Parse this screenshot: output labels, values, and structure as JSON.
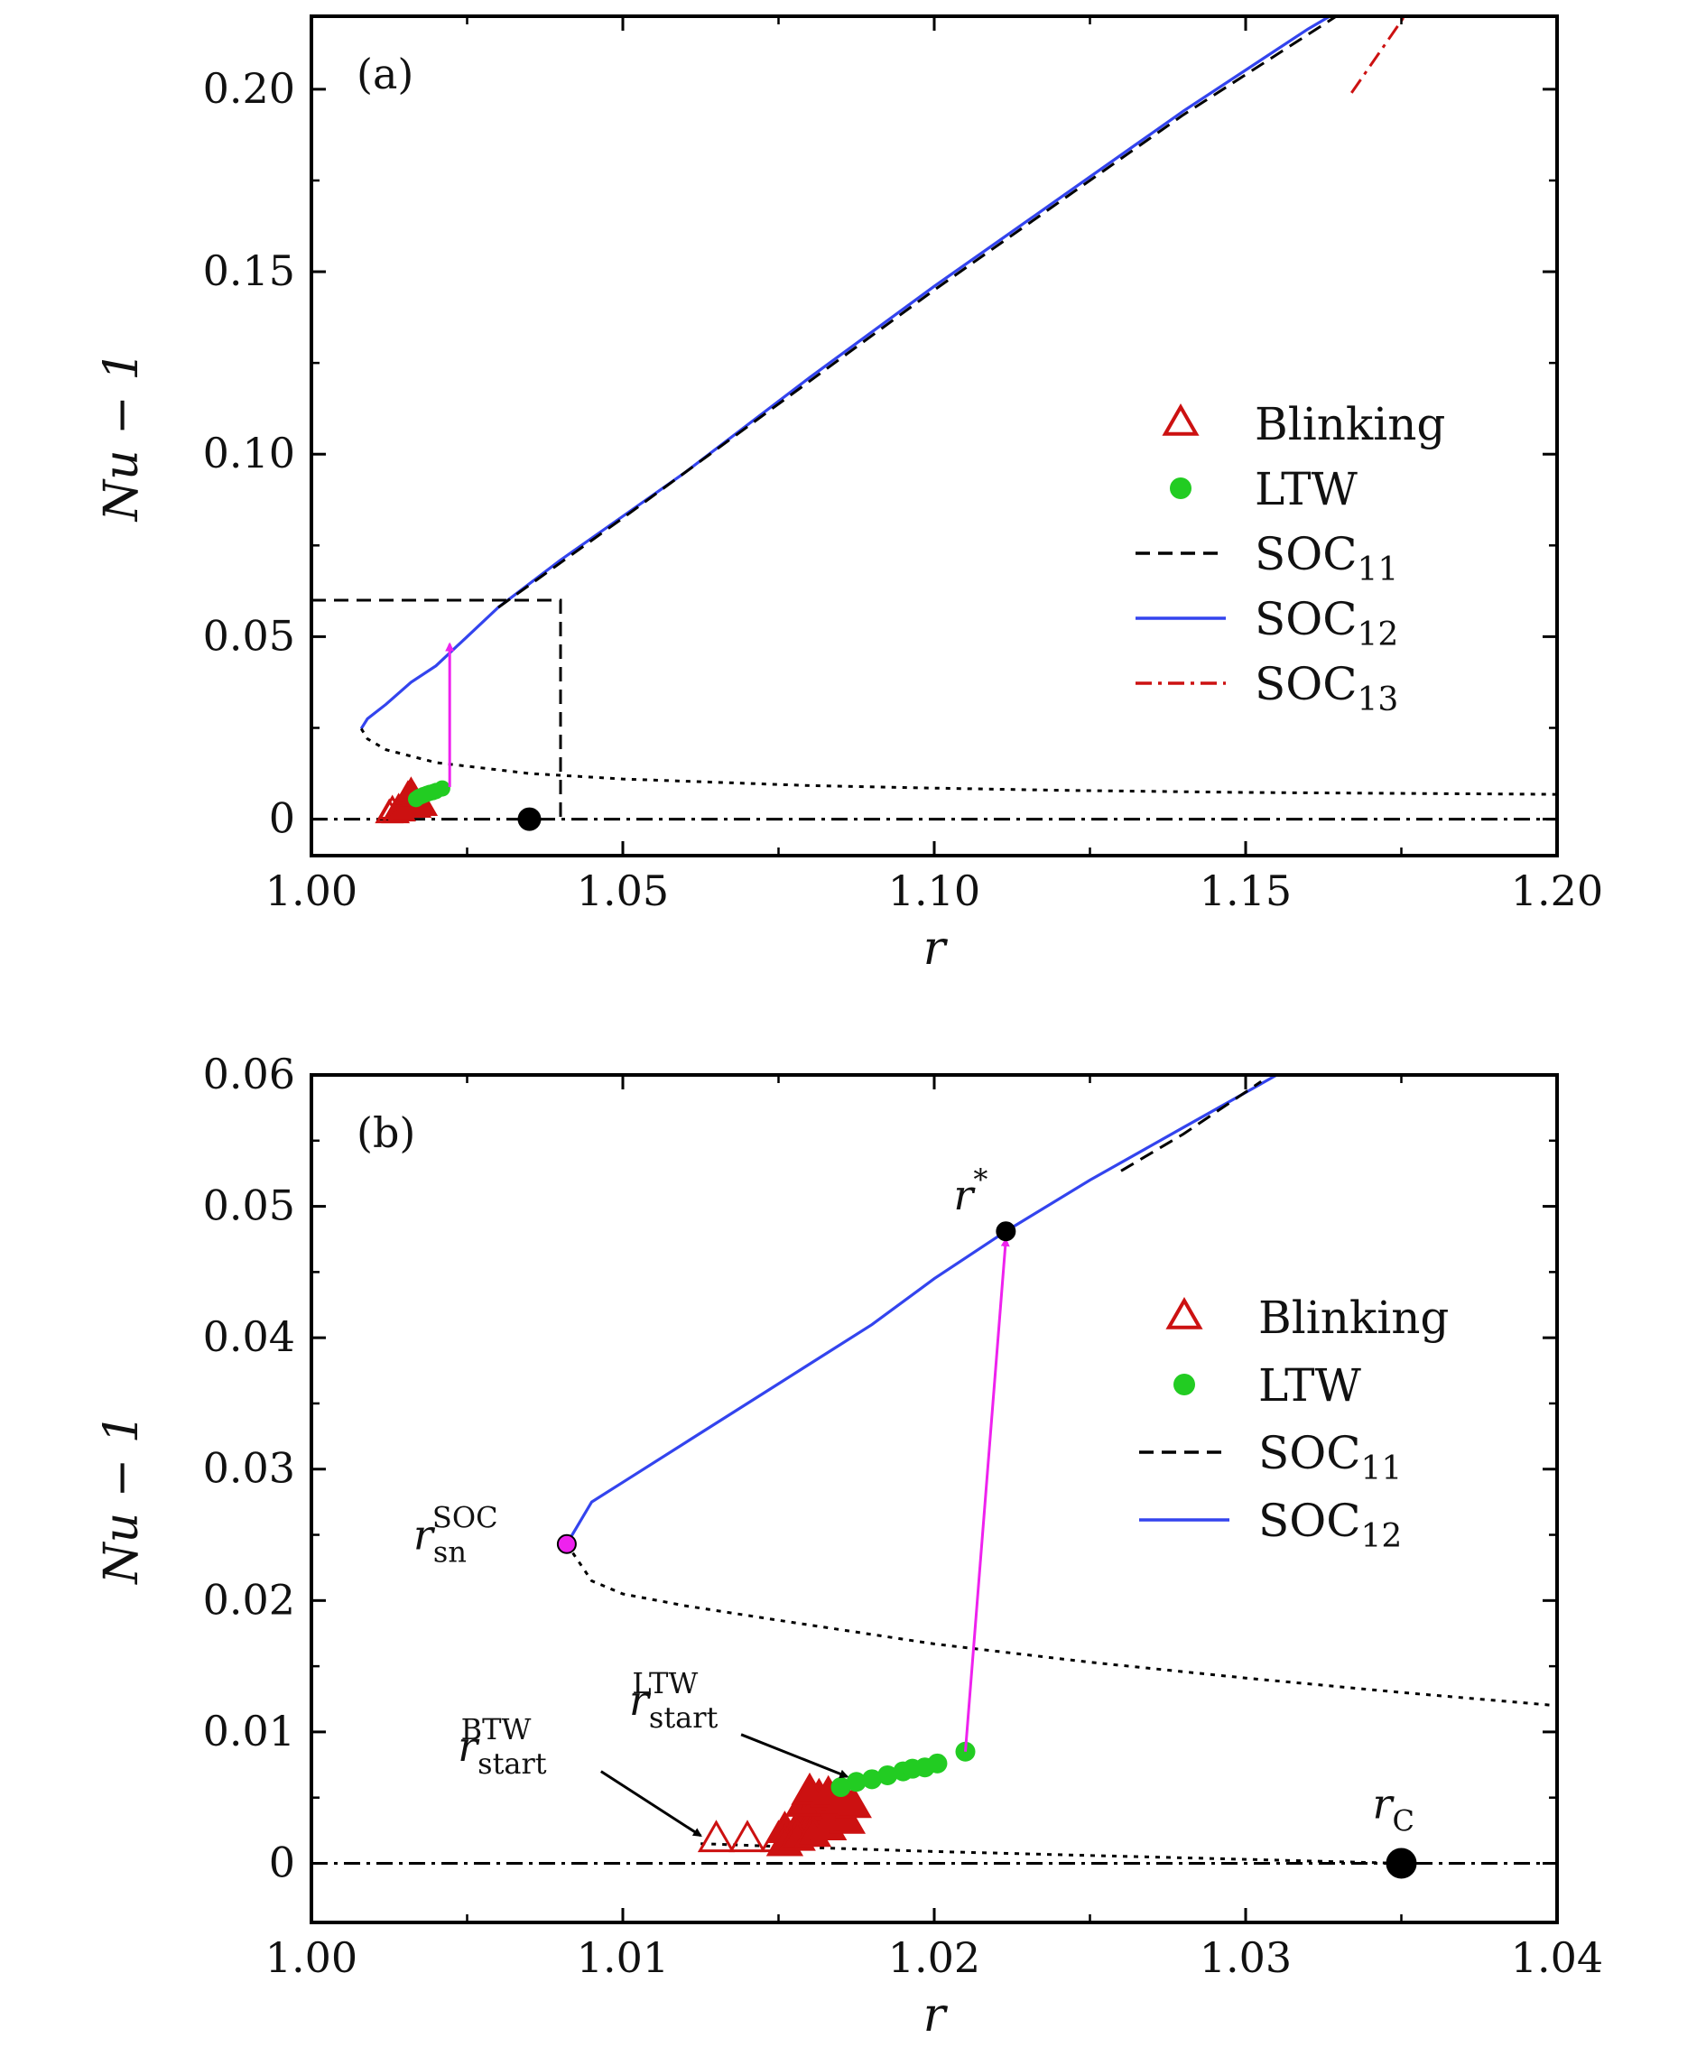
{
  "chart_data": [
    {
      "panel": "(a)",
      "type": "line",
      "xlabel": "r",
      "ylabel": "Nu − 1",
      "xlim": [
        1.0,
        1.2
      ],
      "ylim": [
        -0.01,
        0.22
      ],
      "xticks": [
        1.0,
        1.05,
        1.1,
        1.15,
        1.2
      ],
      "xtick_labels": [
        "1.00",
        "1.05",
        "1.10",
        "1.15",
        "1.20"
      ],
      "yticks": [
        0,
        0.05,
        0.1,
        0.15,
        0.2
      ],
      "ytick_labels": [
        "0",
        "0.05",
        "0.10",
        "0.15",
        "0.20"
      ],
      "legend": [
        {
          "label": "Blinking",
          "sub": "",
          "kind": "triangle",
          "color": "#cc1111"
        },
        {
          "label": "LTW",
          "sub": "",
          "kind": "dot",
          "color": "#22cc22"
        },
        {
          "label": "SOC",
          "sub": "11",
          "kind": "dashed",
          "color": "#000000"
        },
        {
          "label": "SOC",
          "sub": "12",
          "kind": "solid",
          "color": "#3344ee"
        },
        {
          "label": "SOC",
          "sub": "13",
          "kind": "dashdot",
          "color": "#cc1111"
        }
      ],
      "series": [
        {
          "name": "SOC12 stable",
          "style": "solid",
          "color": "#3344ee",
          "x": [
            1.008,
            1.009,
            1.012,
            1.016,
            1.02,
            1.025,
            1.03,
            1.04,
            1.05,
            1.06,
            1.08,
            1.1,
            1.12,
            1.14,
            1.16,
            1.1655
          ],
          "y": [
            0.0248,
            0.0275,
            0.0315,
            0.0375,
            0.042,
            0.05,
            0.058,
            0.071,
            0.083,
            0.095,
            0.121,
            0.146,
            0.17,
            0.194,
            0.2165,
            0.222
          ]
        },
        {
          "name": "SOC11",
          "style": "dashed",
          "color": "#000000",
          "x": [
            1.03,
            1.05,
            1.08,
            1.1,
            1.12,
            1.14,
            1.165
          ],
          "y": [
            0.058,
            0.0825,
            0.12,
            0.145,
            0.169,
            0.193,
            0.2205
          ]
        },
        {
          "name": "SOC13",
          "style": "dashdot",
          "color": "#cc1111",
          "x": [
            1.167,
            1.1755
          ],
          "y": [
            0.199,
            0.22
          ]
        },
        {
          "name": "unstable branch",
          "style": "dotted",
          "color": "#000000",
          "x": [
            1.008,
            1.009,
            1.012,
            1.02,
            1.035,
            1.05,
            1.08,
            1.1,
            1.12,
            1.15,
            1.2
          ],
          "y": [
            0.0248,
            0.022,
            0.019,
            0.0155,
            0.0125,
            0.011,
            0.0092,
            0.0085,
            0.0079,
            0.0073,
            0.0068
          ]
        },
        {
          "name": "conduction state",
          "style": "dashdot",
          "color": "#000000",
          "x": [
            1.0,
            1.2
          ],
          "y": [
            0,
            0
          ]
        }
      ],
      "blinking": {
        "x": [
          1.0125,
          1.013,
          1.0135,
          1.014,
          1.0145,
          1.015,
          1.0155,
          1.016,
          1.0165,
          1.017,
          1.0175,
          1.018,
          1.0155,
          1.016,
          1.0165
        ],
        "y": [
          0.0015,
          0.0025,
          0.0015,
          0.003,
          0.002,
          0.0035,
          0.0045,
          0.005,
          0.004,
          0.003,
          0.0045,
          0.0035,
          0.0065,
          0.0075,
          0.006
        ]
      },
      "ltw": {
        "x": [
          1.0168,
          1.0172,
          1.0176,
          1.018,
          1.0185,
          1.019,
          1.0195,
          1.02,
          1.021
        ],
        "y": [
          0.0055,
          0.006,
          0.0063,
          0.0066,
          0.0069,
          0.0072,
          0.0074,
          0.0077,
          0.0084
        ]
      },
      "jump_arrow": {
        "x": 1.0222,
        "from": 0.0088,
        "to": 0.048,
        "color": "#ee22ee"
      },
      "zoom_box": {
        "x": [
          1.0,
          1.04
        ],
        "y": [
          0,
          0.06
        ]
      },
      "point_rc": {
        "x": 1.035,
        "y": 0
      }
    },
    {
      "panel": "(b)",
      "type": "line",
      "xlabel": "r",
      "ylabel": "Nu − 1",
      "xlim": [
        1.0,
        1.04
      ],
      "ylim": [
        -0.0045,
        0.06
      ],
      "xticks": [
        1.0,
        1.01,
        1.02,
        1.03,
        1.04
      ],
      "xtick_labels": [
        "1.00",
        "1.01",
        "1.02",
        "1.03",
        "1.04"
      ],
      "yticks": [
        0,
        0.01,
        0.02,
        0.03,
        0.04,
        0.05,
        0.06
      ],
      "ytick_labels": [
        "0",
        "0.01",
        "0.02",
        "0.03",
        "0.04",
        "0.05",
        "0.06"
      ],
      "legend": [
        {
          "label": "Blinking",
          "sub": "",
          "kind": "triangle",
          "color": "#cc1111"
        },
        {
          "label": "LTW",
          "sub": "",
          "kind": "dot",
          "color": "#22cc22"
        },
        {
          "label": "SOC",
          "sub": "11",
          "kind": "dashed",
          "color": "#000000"
        },
        {
          "label": "SOC",
          "sub": "12",
          "kind": "solid",
          "color": "#3344ee"
        }
      ],
      "series": [
        {
          "name": "SOC12 stable",
          "style": "solid",
          "color": "#3344ee",
          "x": [
            1.0082,
            1.009,
            1.01,
            1.012,
            1.015,
            1.018,
            1.02,
            1.0223,
            1.025,
            1.028,
            1.031
          ],
          "y": [
            0.0243,
            0.0275,
            0.029,
            0.032,
            0.0365,
            0.041,
            0.0445,
            0.0481,
            0.052,
            0.056,
            0.06
          ]
        },
        {
          "name": "SOC11",
          "style": "dashed",
          "color": "#000000",
          "x": [
            1.026,
            1.028,
            1.0305
          ],
          "y": [
            0.0527,
            0.0555,
            0.0595
          ]
        },
        {
          "name": "unstable branch",
          "style": "dotted",
          "color": "#000000",
          "x": [
            1.0082,
            1.009,
            1.01,
            1.012,
            1.015,
            1.02,
            1.025,
            1.03,
            1.035,
            1.04
          ],
          "y": [
            0.0243,
            0.0215,
            0.0205,
            0.0196,
            0.0185,
            0.0167,
            0.0153,
            0.0141,
            0.013,
            0.012
          ]
        },
        {
          "name": "lower branch",
          "style": "dotted",
          "color": "#000000",
          "x": [
            1.0125,
            1.016,
            1.02,
            1.025,
            1.03,
            1.035
          ],
          "y": [
            0.0015,
            0.0012,
            0.0009,
            0.0006,
            0.0003,
            0.0
          ]
        },
        {
          "name": "conduction state",
          "style": "dashdot",
          "color": "#000000",
          "x": [
            1.0,
            1.04
          ],
          "y": [
            0,
            0
          ]
        }
      ],
      "blinking": {
        "x": [
          1.013,
          1.014,
          1.015,
          1.0152,
          1.0155,
          1.0158,
          1.016,
          1.0163,
          1.0165,
          1.0168,
          1.017,
          1.0152,
          1.0156,
          1.0161,
          1.0166,
          1.0172,
          1.0158,
          1.0163,
          1.0168,
          1.0174,
          1.016,
          1.0166,
          1.0171
        ],
        "y": [
          0.0018,
          0.0018,
          0.0018,
          0.0025,
          0.0022,
          0.0031,
          0.0028,
          0.0037,
          0.0033,
          0.0042,
          0.0038,
          0.0015,
          0.0019,
          0.0022,
          0.0027,
          0.0032,
          0.0045,
          0.005,
          0.0047,
          0.0044,
          0.0054,
          0.0052,
          0.0049
        ]
      },
      "ltw": {
        "x": [
          1.017,
          1.0175,
          1.018,
          1.0185,
          1.019,
          1.0193,
          1.0197,
          1.0201,
          1.021
        ],
        "y": [
          0.0058,
          0.0062,
          0.0064,
          0.0067,
          0.007,
          0.0072,
          0.0073,
          0.0076,
          0.0085
        ]
      },
      "jump_arrow": {
        "x_from": 1.021,
        "y_from": 0.0085,
        "x_to": 1.0223,
        "y_to": 0.0475,
        "color": "#ee22ee"
      },
      "points": [
        {
          "name": "r*",
          "x": 1.0223,
          "y": 0.0481,
          "color": "#000000"
        },
        {
          "name": "r_sn^SOC",
          "x": 1.0082,
          "y": 0.0243,
          "color": "#ee22ee"
        },
        {
          "name": "r_C",
          "x": 1.035,
          "y": 0.0,
          "color": "#000000"
        }
      ],
      "annotations": {
        "r_star": {
          "base": "r",
          "sup": "*"
        },
        "r_sn": {
          "base": "r",
          "sub": "sn",
          "sup": "SOC"
        },
        "r_ltw": {
          "base": "r",
          "sub": "start",
          "sup": "LTW"
        },
        "r_btw": {
          "base": "r",
          "sub": "start",
          "sup": "BTW"
        },
        "r_c": {
          "base": "r",
          "sub": "C"
        }
      },
      "annotation_arrows": [
        {
          "name": "ltw-start",
          "x_from": 1.0138,
          "y_from": 0.0098,
          "x_to": 1.0172,
          "y_to": 0.0066
        },
        {
          "name": "btw-start",
          "x_from": 1.0093,
          "y_from": 0.007,
          "x_to": 1.0125,
          "y_to": 0.0021
        }
      ]
    }
  ]
}
